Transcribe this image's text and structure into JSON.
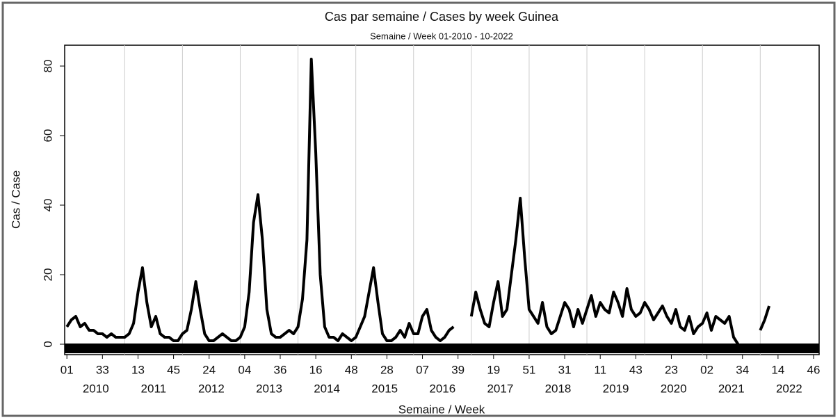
{
  "chart_data": {
    "type": "line",
    "title": "Cas par semaine / Cases by week Guinea",
    "subtitle": "Semaine / Week 01-2010 - 10-2022",
    "x_label": "Semaine / Week",
    "y_label": "Cas / Case",
    "color": "#000000",
    "x": [
      0,
      4,
      8,
      12,
      16,
      20,
      24,
      28,
      32,
      36,
      40,
      44,
      48,
      52,
      56,
      60,
      64,
      68,
      72,
      76,
      80,
      84,
      88,
      92,
      96,
      100,
      104,
      108,
      112,
      116,
      120,
      124,
      128,
      132,
      136,
      140,
      144,
      148,
      152,
      156,
      160,
      164,
      168,
      172,
      176,
      180,
      184,
      188,
      192,
      196,
      200,
      204,
      208,
      212,
      216,
      220,
      224,
      228,
      232,
      236,
      240,
      244,
      248,
      252,
      256,
      260,
      264,
      268,
      272,
      276,
      280,
      284,
      288,
      292,
      296,
      300,
      304,
      308,
      312,
      316,
      320,
      324,
      328,
      332,
      336,
      340,
      344,
      348,
      352,
      356,
      360,
      364,
      368,
      372,
      376,
      380,
      384,
      388,
      392,
      396,
      400,
      404,
      408,
      412,
      416,
      420,
      424,
      428,
      432,
      436,
      440,
      444,
      448,
      452,
      456,
      460,
      464,
      468,
      472,
      476,
      480,
      484,
      488,
      492,
      496,
      500,
      504,
      508,
      512,
      516,
      520,
      524,
      528,
      532,
      536,
      540,
      544,
      548,
      552,
      556,
      560,
      564,
      568,
      572,
      576,
      580,
      584,
      588,
      592,
      596,
      600,
      604,
      608,
      612,
      616,
      620,
      624,
      628,
      632
    ],
    "values": [
      5,
      7,
      8,
      5,
      6,
      4,
      4,
      3,
      3,
      2,
      3,
      2,
      2,
      2,
      3,
      6,
      15,
      22,
      12,
      5,
      8,
      3,
      2,
      2,
      1,
      1,
      3,
      4,
      10,
      18,
      10,
      3,
      1,
      1,
      2,
      3,
      2,
      1,
      1,
      2,
      5,
      15,
      35,
      43,
      30,
      10,
      3,
      2,
      2,
      3,
      4,
      3,
      5,
      13,
      30,
      82,
      55,
      20,
      5,
      2,
      2,
      1,
      3,
      2,
      1,
      2,
      5,
      8,
      15,
      22,
      12,
      3,
      1,
      1,
      2,
      4,
      2,
      6,
      3,
      3,
      8,
      10,
      4,
      2,
      1,
      2,
      4,
      5,
      null,
      null,
      null,
      8,
      15,
      10,
      6,
      5,
      12,
      18,
      8,
      10,
      20,
      30,
      42,
      25,
      10,
      8,
      6,
      12,
      5,
      3,
      4,
      8,
      12,
      10,
      5,
      10,
      6,
      10,
      14,
      8,
      12,
      10,
      9,
      15,
      12,
      8,
      16,
      10,
      8,
      9,
      12,
      10,
      7,
      9,
      11,
      8,
      6,
      10,
      5,
      4,
      8,
      3,
      5,
      6,
      9,
      4,
      8,
      7,
      6,
      8,
      2,
      0,
      null,
      null,
      null,
      null,
      4,
      7,
      11
    ],
    "xlim": [
      -2,
      677
    ],
    "ylim": [
      -3,
      86
    ],
    "yticks": [
      0,
      20,
      40,
      60,
      80
    ],
    "xticks": [
      {
        "value": 0,
        "label": "01"
      },
      {
        "value": 32,
        "label": "33"
      },
      {
        "value": 64,
        "label": "13"
      },
      {
        "value": 96,
        "label": "45"
      },
      {
        "value": 128,
        "label": "24"
      },
      {
        "value": 160,
        "label": "04"
      },
      {
        "value": 192,
        "label": "36"
      },
      {
        "value": 224,
        "label": "16"
      },
      {
        "value": 256,
        "label": "48"
      },
      {
        "value": 288,
        "label": "28"
      },
      {
        "value": 320,
        "label": "07"
      },
      {
        "value": 352,
        "label": "39"
      },
      {
        "value": 384,
        "label": "19"
      },
      {
        "value": 416,
        "label": "51"
      },
      {
        "value": 448,
        "label": "31"
      },
      {
        "value": 480,
        "label": "11"
      },
      {
        "value": 512,
        "label": "43"
      },
      {
        "value": 544,
        "label": "23"
      },
      {
        "value": 576,
        "label": "02"
      },
      {
        "value": 608,
        "label": "34"
      },
      {
        "value": 640,
        "label": "14"
      },
      {
        "value": 672,
        "label": "46"
      }
    ],
    "year_labels": [
      {
        "value": 26,
        "label": "2010"
      },
      {
        "value": 78,
        "label": "2011"
      },
      {
        "value": 130,
        "label": "2012"
      },
      {
        "value": 182,
        "label": "2013"
      },
      {
        "value": 234,
        "label": "2014"
      },
      {
        "value": 286,
        "label": "2015"
      },
      {
        "value": 338,
        "label": "2016"
      },
      {
        "value": 390,
        "label": "2017"
      },
      {
        "value": 442,
        "label": "2018"
      },
      {
        "value": 494,
        "label": "2019"
      },
      {
        "value": 546,
        "label": "2020"
      },
      {
        "value": 598,
        "label": "2021"
      },
      {
        "value": 650,
        "label": "2022"
      }
    ],
    "grid": true
  }
}
